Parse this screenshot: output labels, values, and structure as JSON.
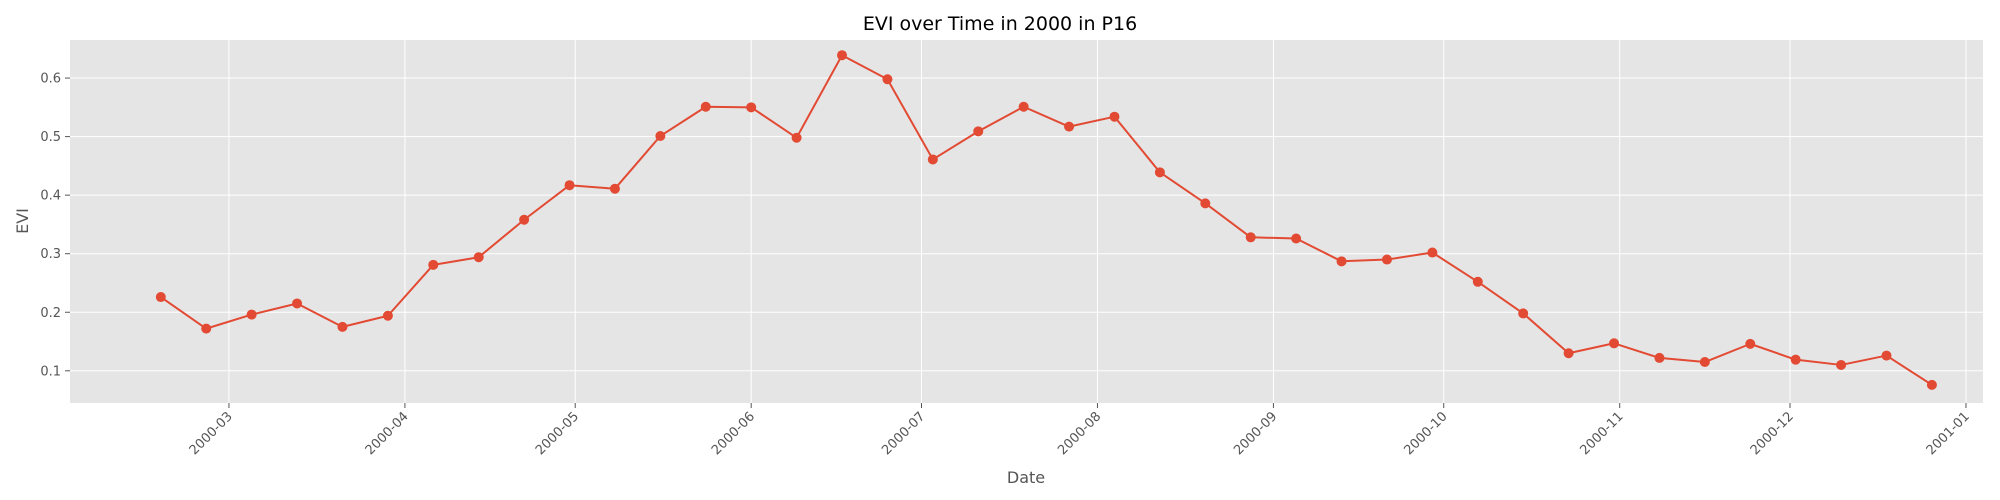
{
  "chart_data": {
    "type": "line",
    "title": "EVI over Time in 2000 in P16",
    "xlabel": "Date",
    "ylabel": "EVI",
    "x_type": "date",
    "xlim": [
      "2000-02-02",
      "2001-01-04"
    ],
    "ylim": [
      0.045,
      0.665
    ],
    "x_ticks": [
      "2000-03-01",
      "2000-04-01",
      "2000-05-01",
      "2000-06-01",
      "2000-07-01",
      "2000-08-01",
      "2000-09-01",
      "2000-10-01",
      "2000-11-01",
      "2000-12-01",
      "2001-01-01"
    ],
    "x_tick_labels": [
      "2000-03",
      "2000-04",
      "2000-05",
      "2000-06",
      "2000-07",
      "2000-08",
      "2000-09",
      "2000-10",
      "2000-11",
      "2000-12",
      "2001-01"
    ],
    "y_ticks": [
      0.1,
      0.2,
      0.3,
      0.4,
      0.5,
      0.6
    ],
    "y_tick_labels": [
      "0.1",
      "0.2",
      "0.3",
      "0.4",
      "0.5",
      "0.6"
    ],
    "grid": true,
    "legend": "none",
    "background": "#e5e5e5",
    "line_color": "#e24a33",
    "series": [
      {
        "x": [
          "2000-02-18",
          "2000-02-26",
          "2000-03-05",
          "2000-03-13",
          "2000-03-21",
          "2000-03-29",
          "2000-04-06",
          "2000-04-14",
          "2000-04-22",
          "2000-04-30",
          "2000-05-08",
          "2000-05-16",
          "2000-05-24",
          "2000-06-01",
          "2000-06-09",
          "2000-06-17",
          "2000-06-25",
          "2000-07-03",
          "2000-07-11",
          "2000-07-19",
          "2000-07-27",
          "2000-08-04",
          "2000-08-12",
          "2000-08-20",
          "2000-08-28",
          "2000-09-05",
          "2000-09-13",
          "2000-09-21",
          "2000-09-29",
          "2000-10-07",
          "2000-10-15",
          "2000-10-23",
          "2000-10-31",
          "2000-11-08",
          "2000-11-16",
          "2000-11-24",
          "2000-12-02",
          "2000-12-10",
          "2000-12-18",
          "2000-12-26"
        ],
        "y": [
          0.226,
          0.172,
          0.196,
          0.215,
          0.175,
          0.194,
          0.281,
          0.294,
          0.358,
          0.417,
          0.411,
          0.501,
          0.551,
          0.55,
          0.498,
          0.639,
          0.598,
          0.461,
          0.509,
          0.551,
          0.517,
          0.534,
          0.439,
          0.386,
          0.328,
          0.326,
          0.287,
          0.29,
          0.302,
          0.252,
          0.198,
          0.13,
          0.147,
          0.122,
          0.115,
          0.146,
          0.119,
          0.11,
          0.126,
          0.076
        ]
      }
    ]
  }
}
